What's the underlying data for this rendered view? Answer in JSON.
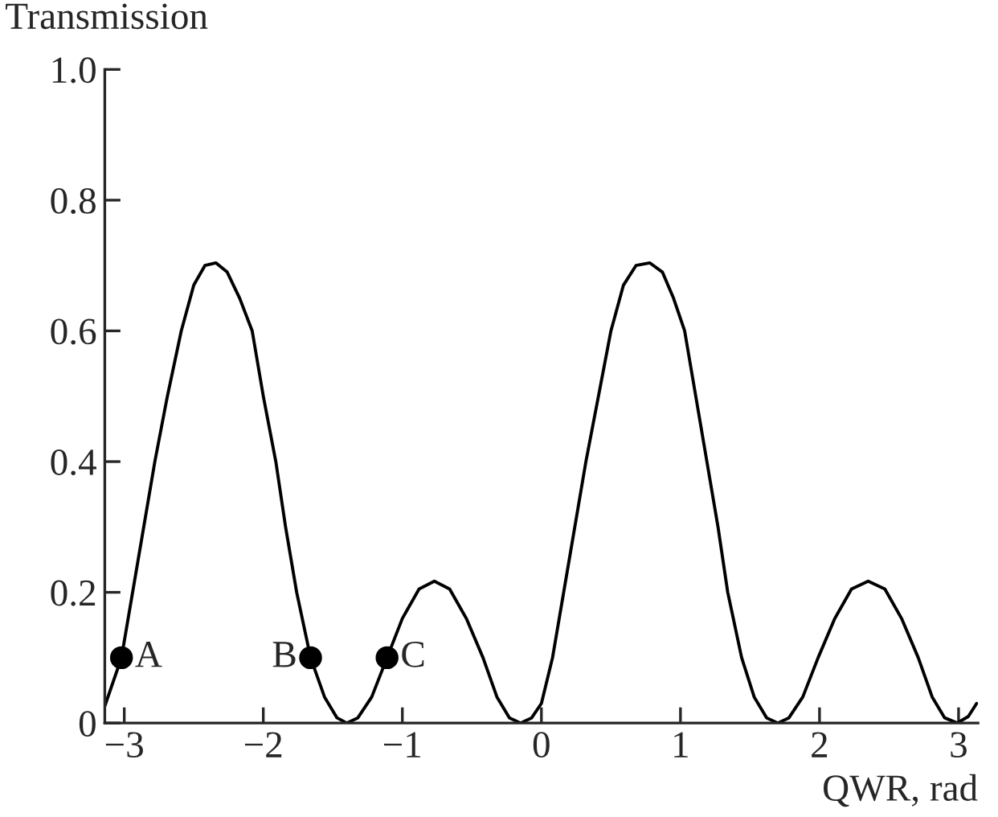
{
  "chart_data": {
    "type": "line",
    "xlabel": "QWR, rad",
    "ylabel": "Transmission",
    "xlim": [
      -3.14,
      3.14
    ],
    "ylim": [
      0,
      1.0
    ],
    "xticks": [
      {
        "value": -3,
        "label": "−3"
      },
      {
        "value": -2,
        "label": "−2"
      },
      {
        "value": -1,
        "label": "−1"
      },
      0,
      1,
      2,
      3
    ],
    "yticks": [
      0,
      0.2,
      0.4,
      0.6,
      0.8,
      {
        "value": 1.0,
        "label": "1.0"
      }
    ],
    "grid": false,
    "legend": false,
    "series": [
      {
        "color": "#000000",
        "marker": "none",
        "line_style": "solid",
        "x": [
          -3.14,
          -3.02,
          -2.94,
          -2.86,
          -2.78,
          -2.69,
          -2.59,
          -2.5,
          -2.42,
          -2.34,
          -2.26,
          -2.17,
          -2.08,
          -2.0,
          -1.91,
          -1.84,
          -1.76,
          -1.66,
          -1.56,
          -1.47,
          -1.4,
          -1.32,
          -1.22,
          -1.11,
          -1.0,
          -0.88,
          -0.77,
          -0.66,
          -0.54,
          -0.42,
          -0.32,
          -0.23,
          -0.15,
          -0.07,
          0.0,
          0.08,
          0.16,
          0.24,
          0.32,
          0.41,
          0.5,
          0.59,
          0.68,
          0.78,
          0.87,
          0.95,
          1.03,
          1.11,
          1.19,
          1.27,
          1.34,
          1.44,
          1.53,
          1.62,
          1.7,
          1.78,
          1.88,
          1.99,
          2.11,
          2.23,
          2.35,
          2.47,
          2.59,
          2.71,
          2.81,
          2.9,
          2.99,
          3.07,
          3.13
        ],
        "values": [
          0.026,
          0.1,
          0.2,
          0.3,
          0.4,
          0.5,
          0.6,
          0.67,
          0.7,
          0.704,
          0.69,
          0.65,
          0.6,
          0.5,
          0.4,
          0.3,
          0.2,
          0.1,
          0.04,
          0.008,
          0.0,
          0.008,
          0.04,
          0.1,
          0.16,
          0.205,
          0.217,
          0.205,
          0.16,
          0.1,
          0.04,
          0.008,
          0.0,
          0.008,
          0.03,
          0.1,
          0.2,
          0.3,
          0.4,
          0.5,
          0.6,
          0.67,
          0.7,
          0.704,
          0.69,
          0.65,
          0.6,
          0.5,
          0.4,
          0.3,
          0.2,
          0.1,
          0.04,
          0.008,
          0.0,
          0.008,
          0.04,
          0.1,
          0.16,
          0.205,
          0.217,
          0.205,
          0.16,
          0.1,
          0.04,
          0.008,
          0.0,
          0.01,
          0.03
        ]
      },
      {
        "type": "scatter",
        "color": "#000000",
        "marker": "circle",
        "x": [
          -3.02,
          -1.66,
          -1.11
        ],
        "values": [
          0.1,
          0.1,
          0.1
        ]
      }
    ],
    "annotations": [
      {
        "text": "A",
        "x": -3.02,
        "y": 0.1
      },
      {
        "text": "B",
        "x": -1.66,
        "y": 0.1
      },
      {
        "text": "C",
        "x": -1.11,
        "y": 0.1
      }
    ]
  }
}
